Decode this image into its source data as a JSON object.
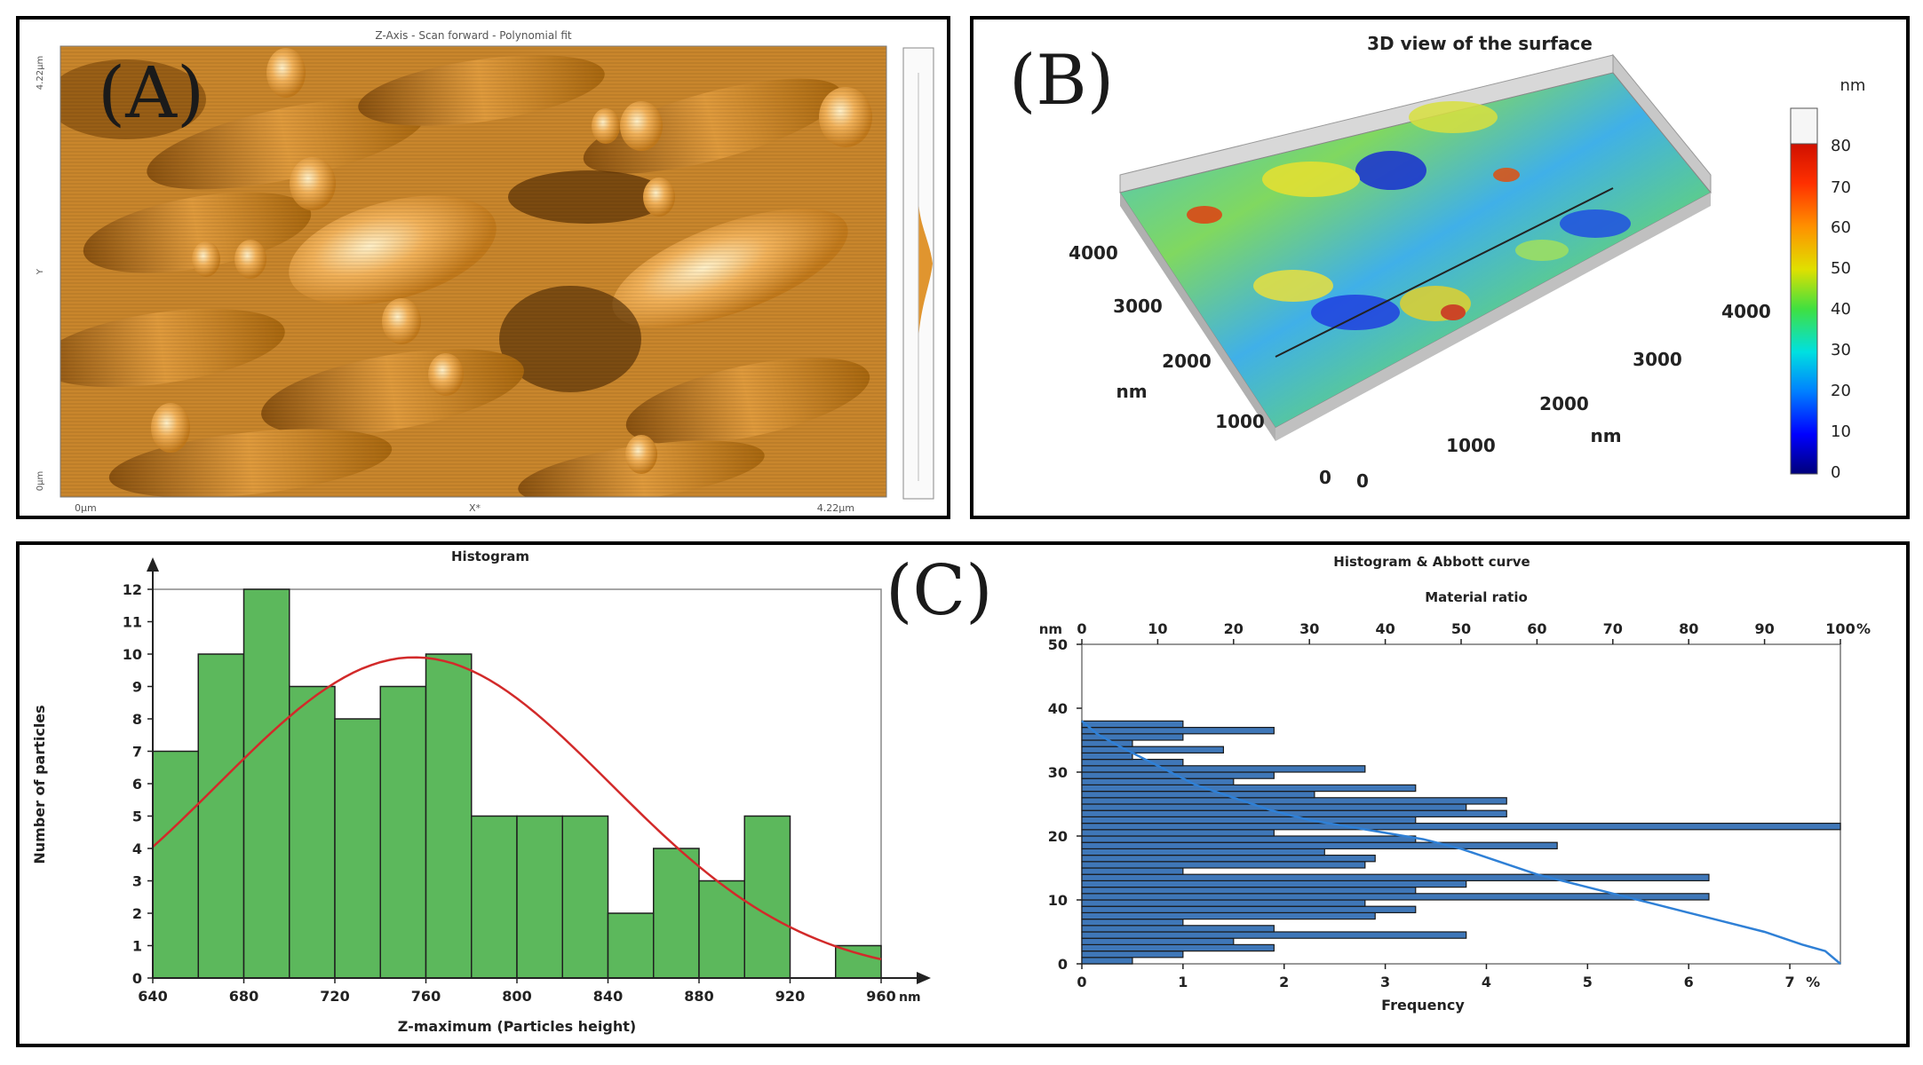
{
  "panel_a": {
    "label": "(A)",
    "title": "Z-Axis - Scan forward - Polynomial fit",
    "x_start": "0μm",
    "x_mid": "X*",
    "x_end": "4.22μm",
    "y_top": "4.22μm",
    "y_mid": "Y",
    "y_bottom": "0μm"
  },
  "panel_b": {
    "label": "(B)",
    "title": "3D view of the surface",
    "unit": "nm",
    "left_axis_ticks": [
      "4000",
      "3000",
      "2000",
      "1000",
      "0"
    ],
    "left_axis_label": "nm",
    "right_axis_ticks": [
      "0",
      "1000",
      "2000",
      "3000",
      "4000"
    ],
    "right_axis_label": "nm",
    "colorbar_ticks": [
      "80",
      "70",
      "60",
      "50",
      "40",
      "30",
      "20",
      "10",
      "0"
    ],
    "colorbar_unit": "nm"
  },
  "panel_c": {
    "label": "(C)"
  },
  "chart_data": [
    {
      "type": "bar",
      "title": "Histogram",
      "xlabel": "Z-maximum (Particles height)",
      "ylabel": "Number of particles",
      "x_unit": "nm",
      "bin_edges": [
        640,
        660,
        680,
        700,
        720,
        740,
        760,
        780,
        800,
        820,
        840,
        860,
        880,
        900,
        920,
        940,
        960
      ],
      "values": [
        7,
        10,
        12,
        9,
        8,
        9,
        10,
        5,
        5,
        5,
        2,
        4,
        3,
        5,
        0,
        1
      ],
      "x_ticks": [
        640,
        680,
        720,
        760,
        800,
        840,
        880,
        920,
        960
      ],
      "y_ticks": [
        0,
        1,
        2,
        3,
        4,
        5,
        6,
        7,
        8,
        9,
        10,
        11,
        12
      ],
      "xlim": [
        640,
        960
      ],
      "ylim": [
        0,
        12
      ],
      "fit_curve": {
        "type": "gaussian",
        "mean": 755,
        "sd": 86,
        "peak": 9.9
      },
      "colors": {
        "bar": "#5cb85c",
        "bar_edge": "#1f1f1f",
        "curve": "#d22a2a"
      },
      "grid": false
    },
    {
      "type": "bar",
      "orientation": "horizontal",
      "title": "Histogram & Abbott curve",
      "top_axis_label": "Material ratio",
      "top_axis_ticks": [
        0,
        10,
        20,
        30,
        40,
        50,
        60,
        70,
        80,
        90,
        100
      ],
      "top_axis_unit": "%",
      "xlabel": "Frequency",
      "x_ticks": [
        0,
        1,
        2,
        3,
        4,
        5,
        6,
        7
      ],
      "x_unit": "%",
      "ylabel": "nm",
      "y_ticks": [
        0,
        10,
        20,
        30,
        40,
        50
      ],
      "xlim": [
        0,
        7.5
      ],
      "ylim": [
        0,
        50
      ],
      "bins": [
        {
          "y": 0.5,
          "value": 0.5
        },
        {
          "y": 1.5,
          "value": 1.0
        },
        {
          "y": 2.5,
          "value": 1.9
        },
        {
          "y": 3.5,
          "value": 1.5
        },
        {
          "y": 4.5,
          "value": 3.8
        },
        {
          "y": 5.5,
          "value": 1.9
        },
        {
          "y": 6.5,
          "value": 1.0
        },
        {
          "y": 7.5,
          "value": 2.9
        },
        {
          "y": 8.5,
          "value": 3.3
        },
        {
          "y": 9.5,
          "value": 2.8
        },
        {
          "y": 10.5,
          "value": 6.2
        },
        {
          "y": 11.5,
          "value": 3.3
        },
        {
          "y": 12.5,
          "value": 3.8
        },
        {
          "y": 13.5,
          "value": 6.2
        },
        {
          "y": 14.5,
          "value": 1.0
        },
        {
          "y": 15.5,
          "value": 2.8
        },
        {
          "y": 16.5,
          "value": 2.9
        },
        {
          "y": 17.5,
          "value": 2.4
        },
        {
          "y": 18.5,
          "value": 4.7
        },
        {
          "y": 19.5,
          "value": 3.3
        },
        {
          "y": 20.5,
          "value": 1.9
        },
        {
          "y": 21.5,
          "value": 7.5
        },
        {
          "y": 22.5,
          "value": 3.3
        },
        {
          "y": 23.5,
          "value": 4.2
        },
        {
          "y": 24.5,
          "value": 3.8
        },
        {
          "y": 25.5,
          "value": 4.2
        },
        {
          "y": 26.5,
          "value": 2.3
        },
        {
          "y": 27.5,
          "value": 3.3
        },
        {
          "y": 28.5,
          "value": 1.5
        },
        {
          "y": 29.5,
          "value": 1.9
        },
        {
          "y": 30.5,
          "value": 2.8
        },
        {
          "y": 31.5,
          "value": 1.0
        },
        {
          "y": 32.5,
          "value": 0.5
        },
        {
          "y": 33.5,
          "value": 1.4
        },
        {
          "y": 34.5,
          "value": 0.5
        },
        {
          "y": 35.5,
          "value": 1.0
        },
        {
          "y": 36.5,
          "value": 1.9
        },
        {
          "y": 37.5,
          "value": 1.0
        }
      ],
      "abbott_curve": [
        [
          0,
          38
        ],
        [
          2,
          36
        ],
        [
          5,
          34
        ],
        [
          10,
          31
        ],
        [
          15,
          28
        ],
        [
          20,
          26
        ],
        [
          25,
          24
        ],
        [
          30,
          22.5
        ],
        [
          35,
          21.5
        ],
        [
          40,
          20.5
        ],
        [
          45,
          19.5
        ],
        [
          50,
          18
        ],
        [
          55,
          16
        ],
        [
          60,
          14
        ],
        [
          65,
          12.5
        ],
        [
          70,
          11
        ],
        [
          75,
          9.5
        ],
        [
          80,
          8
        ],
        [
          85,
          6.5
        ],
        [
          90,
          5
        ],
        [
          95,
          3
        ],
        [
          98,
          2
        ],
        [
          100,
          0
        ]
      ],
      "colors": {
        "bar": "#3f77b8",
        "bar_edge": "#1a1a1a",
        "curve": "#2f80d6"
      }
    }
  ]
}
